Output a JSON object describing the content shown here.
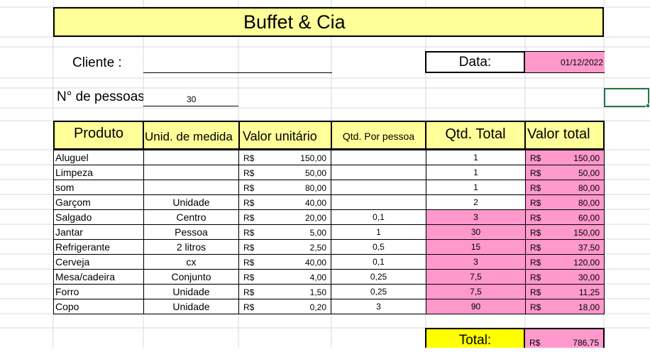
{
  "header": {
    "title": "Buffet & Cia"
  },
  "client": {
    "label": "Cliente :",
    "value": ""
  },
  "date": {
    "label": "Data:",
    "value": "01/12/2022"
  },
  "people": {
    "label": "N° de pessoas",
    "value": "30"
  },
  "table": {
    "headers": [
      "Produto",
      "Unid. de medida",
      "Valor unitário",
      "Qtd. Por pessoa",
      "Qtd. Total",
      "Valor total"
    ],
    "currency": "R$",
    "rows": [
      {
        "produto": "Aluguel",
        "unidade": "",
        "valor_unitario": "150,00",
        "qtd_por_pessoa": "",
        "qtd_total": "1",
        "valor_total": "150,00"
      },
      {
        "produto": "Limpeza",
        "unidade": "",
        "valor_unitario": "50,00",
        "qtd_por_pessoa": "",
        "qtd_total": "1",
        "valor_total": "50,00"
      },
      {
        "produto": "som",
        "unidade": "",
        "valor_unitario": "80,00",
        "qtd_por_pessoa": "",
        "qtd_total": "1",
        "valor_total": "80,00"
      },
      {
        "produto": "Garçom",
        "unidade": "Unidade",
        "valor_unitario": "40,00",
        "qtd_por_pessoa": "",
        "qtd_total": "2",
        "valor_total": "80,00"
      },
      {
        "produto": "Salgado",
        "unidade": "Centro",
        "valor_unitario": "20,00",
        "qtd_por_pessoa": "0,1",
        "qtd_total": "3",
        "valor_total": "60,00"
      },
      {
        "produto": "Jantar",
        "unidade": "Pessoa",
        "valor_unitario": "5,00",
        "qtd_por_pessoa": "1",
        "qtd_total": "30",
        "valor_total": "150,00"
      },
      {
        "produto": "Refrigerante",
        "unidade": "2 litros",
        "valor_unitario": "2,50",
        "qtd_por_pessoa": "0,5",
        "qtd_total": "15",
        "valor_total": "37,50"
      },
      {
        "produto": "Cerveja",
        "unidade": "cx",
        "valor_unitario": "40,00",
        "qtd_por_pessoa": "0,1",
        "qtd_total": "3",
        "valor_total": "120,00"
      },
      {
        "produto": "Mesa/cadeira",
        "unidade": "Conjunto",
        "valor_unitario": "4,00",
        "qtd_por_pessoa": "0,25",
        "qtd_total": "7,5",
        "valor_total": "30,00"
      },
      {
        "produto": "Forro",
        "unidade": "Unidade",
        "valor_unitario": "1,50",
        "qtd_por_pessoa": "0,25",
        "qtd_total": "7,5",
        "valor_total": "11,25"
      },
      {
        "produto": "Copo",
        "unidade": "Unidade",
        "valor_unitario": "0,20",
        "qtd_por_pessoa": "3",
        "qtd_total": "90",
        "valor_total": "18,00"
      }
    ]
  },
  "total": {
    "label": "Total:",
    "currency": "R$",
    "value": "786,75"
  },
  "colors": {
    "title_bg": "#ffff99",
    "pink": "#ff99cc",
    "total_bg": "#ffff00",
    "selection": "#217346"
  }
}
